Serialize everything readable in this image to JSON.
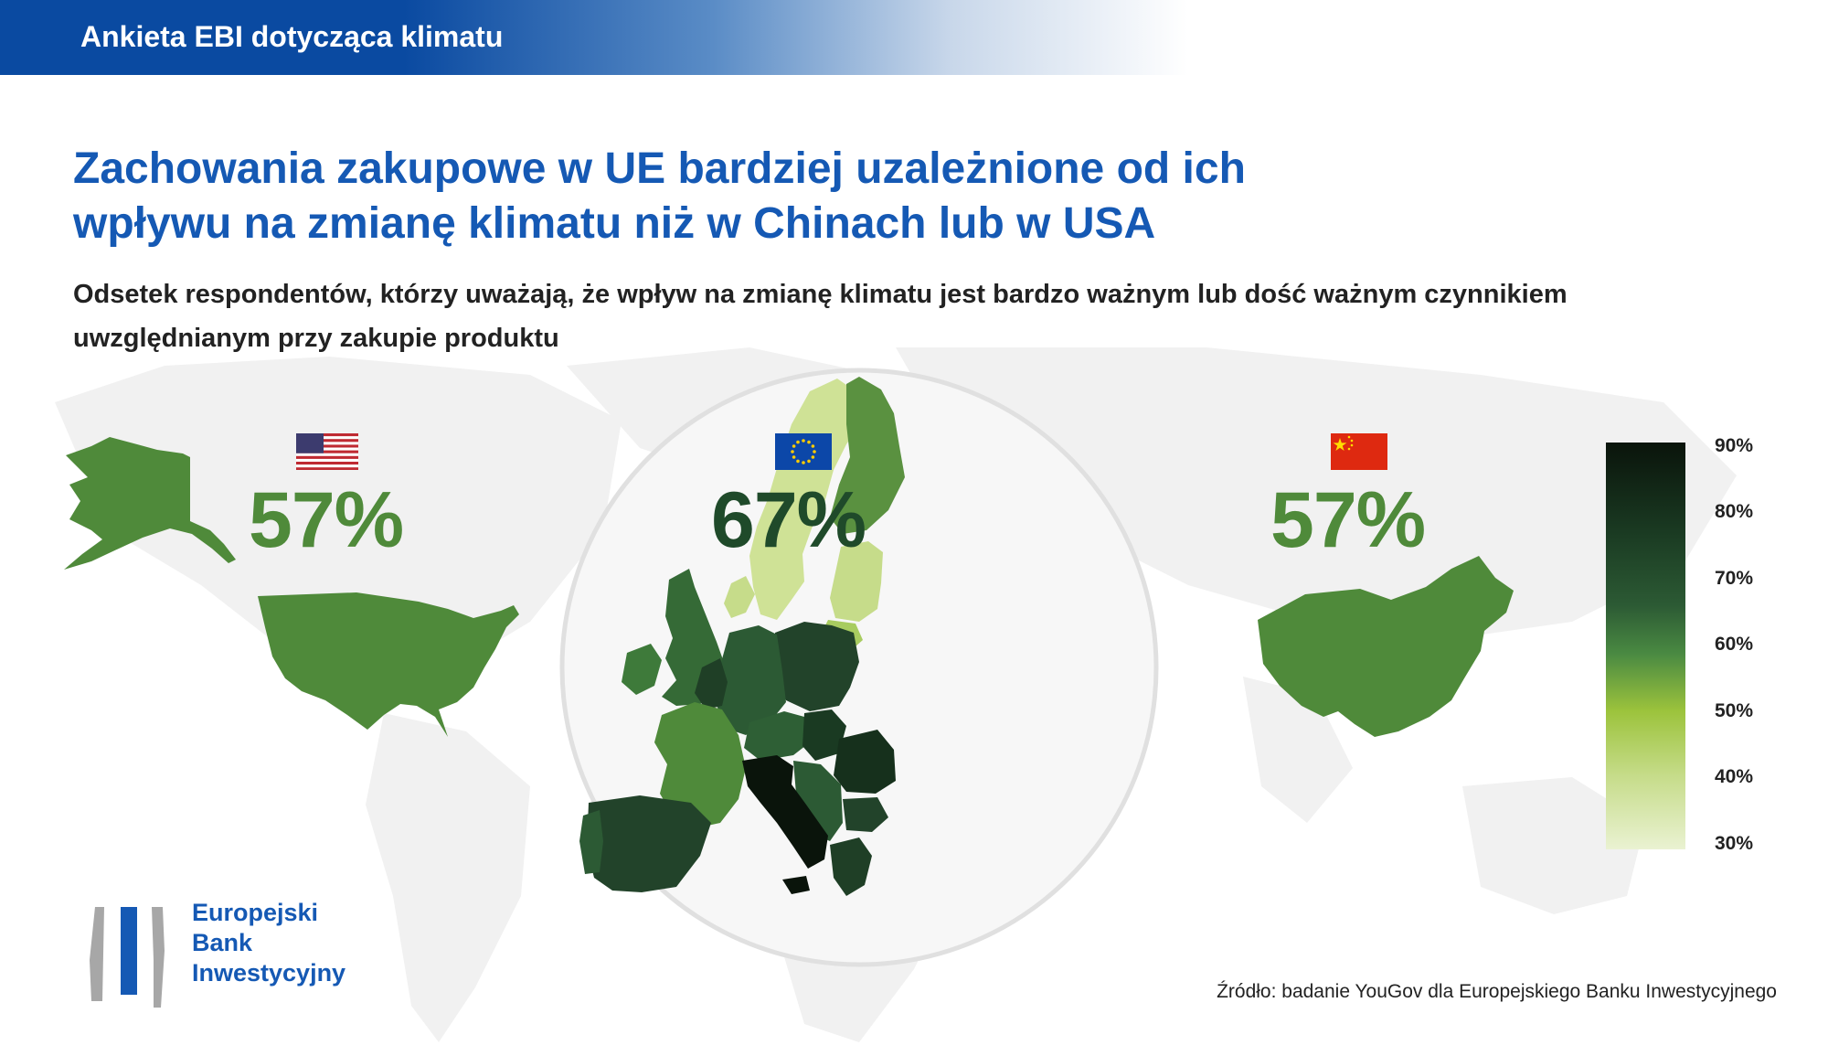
{
  "header": {
    "title": "Ankieta EBI dotycząca klimatu"
  },
  "title": {
    "line1": "Zachowania zakupowe w UE bardziej uzależnione od ich",
    "line2": "wpływu na zmianę klimatu niż w Chinach lub w USA"
  },
  "subtitle": {
    "line1": "Odsetek respondentów, którzy uważają, że wpływ na zmianę klimatu jest bardzo ważnym lub dość ważnym czynnikiem",
    "line2": "uwzględnianym przy zakupie produktu"
  },
  "regions": {
    "usa": {
      "value": "57%",
      "flag_icon": "usa-flag-icon"
    },
    "eu": {
      "value": "67%",
      "flag_icon": "eu-flag-icon"
    },
    "china": {
      "value": "57%",
      "flag_icon": "china-flag-icon"
    }
  },
  "legend": {
    "ticks": [
      "90%",
      "80%",
      "70%",
      "60%",
      "50%",
      "40%",
      "30%"
    ],
    "colors": [
      "#0a140b",
      "#1a3a22",
      "#2c5a34",
      "#4a8a42",
      "#9cc33c",
      "#c6dc8a",
      "#eaf2d2"
    ]
  },
  "logo": {
    "line1": "Europejski",
    "line2": "Bank",
    "line3": "Inwestycyjny"
  },
  "source": "Źródło: badanie YouGov dla Europejskiego Banku Inwestycyjnego",
  "colors": {
    "brand_blue": "#1559b4",
    "us_cn_green": "#4f8a3a",
    "eu_dark_green": "#1f4a2a",
    "world_map_gray": "#f0f0f0"
  }
}
